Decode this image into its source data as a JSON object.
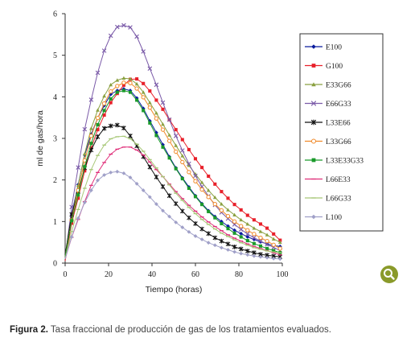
{
  "chart_data": {
    "type": "line",
    "xlabel": "Tiempo (horas)",
    "ylabel": "ml de gas/hora",
    "xlim": [
      0,
      100
    ],
    "ylim": [
      0,
      6
    ],
    "xticks": [
      0,
      20,
      40,
      60,
      80,
      100
    ],
    "yticks": [
      0,
      1,
      2,
      3,
      4,
      5,
      6
    ],
    "grid": false,
    "legend_position": "right",
    "x": [
      0,
      3,
      6,
      9,
      12,
      15,
      18,
      21,
      24,
      27,
      30,
      33,
      36,
      39,
      42,
      45,
      48,
      51,
      54,
      57,
      60,
      63,
      66,
      69,
      72,
      75,
      78,
      81,
      84,
      87,
      90,
      93,
      96,
      99
    ],
    "series": [
      {
        "name": "E100",
        "color": "#0a1c9e",
        "marker": "diamond",
        "peak": 4.2,
        "peak_x": 28,
        "tail": 0.4,
        "start": 0.1,
        "values": [
          0.1,
          1.17,
          1.89,
          2.6,
          3.1,
          3.49,
          3.79,
          4.06,
          4.15,
          4.19,
          4.15,
          3.97,
          3.72,
          3.42,
          3.14,
          2.85,
          2.56,
          2.29,
          2.05,
          1.83,
          1.62,
          1.43,
          1.26,
          1.12,
          1.0,
          0.89,
          0.79,
          0.71,
          0.63,
          0.57,
          0.51,
          0.46,
          0.42,
          0.4
        ]
      },
      {
        "name": "G100",
        "color": "#e8202a",
        "marker": "square",
        "peak": 4.45,
        "peak_x": 31,
        "tail": 0.55,
        "start": 0.05,
        "values": [
          0.05,
          0.96,
          1.56,
          2.22,
          2.77,
          3.21,
          3.56,
          3.86,
          4.08,
          4.28,
          4.42,
          4.43,
          4.32,
          4.14,
          3.92,
          3.7,
          3.45,
          3.21,
          2.97,
          2.73,
          2.51,
          2.3,
          2.09,
          1.9,
          1.72,
          1.56,
          1.41,
          1.28,
          1.15,
          1.04,
          0.94,
          0.84,
          0.7,
          0.55
        ]
      },
      {
        "name": "E33G66",
        "color": "#8aa040",
        "marker": "triangle",
        "peak": 4.45,
        "peak_x": 29,
        "tail": 0.5,
        "start": 0.1,
        "values": [
          0.1,
          1.1,
          1.87,
          2.63,
          3.24,
          3.68,
          4.02,
          4.29,
          4.4,
          4.45,
          4.43,
          4.31,
          4.11,
          3.86,
          3.61,
          3.34,
          3.08,
          2.83,
          2.58,
          2.35,
          2.14,
          1.94,
          1.75,
          1.58,
          1.42,
          1.28,
          1.16,
          1.04,
          0.94,
          0.84,
          0.76,
          0.68,
          0.58,
          0.5
        ]
      },
      {
        "name": "E66G33",
        "color": "#7a5aa8",
        "marker": "x",
        "peak": 5.72,
        "peak_x": 28,
        "tail": 0.3,
        "start": 0.1,
        "values": [
          0.1,
          1.35,
          2.3,
          3.22,
          3.93,
          4.58,
          5.11,
          5.47,
          5.68,
          5.72,
          5.67,
          5.45,
          5.09,
          4.68,
          4.29,
          3.86,
          3.45,
          3.06,
          2.71,
          2.39,
          2.1,
          1.84,
          1.61,
          1.4,
          1.22,
          1.07,
          0.93,
          0.81,
          0.7,
          0.61,
          0.53,
          0.45,
          0.38,
          0.3
        ]
      },
      {
        "name": "L33E66",
        "color": "#111111",
        "marker": "star",
        "peak": 3.32,
        "peak_x": 25,
        "tail": 0.15,
        "start": 0.2,
        "values": [
          0.2,
          1.17,
          1.72,
          2.29,
          2.72,
          3.04,
          3.24,
          3.3,
          3.32,
          3.25,
          3.06,
          2.82,
          2.56,
          2.31,
          2.07,
          1.84,
          1.62,
          1.43,
          1.25,
          1.09,
          0.95,
          0.82,
          0.71,
          0.61,
          0.53,
          0.46,
          0.39,
          0.34,
          0.29,
          0.25,
          0.21,
          0.19,
          0.17,
          0.15
        ]
      },
      {
        "name": "L33G66",
        "color": "#f08a2a",
        "marker": "circle",
        "peak": 4.35,
        "peak_x": 29,
        "tail": 0.35,
        "start": 0.15,
        "values": [
          0.15,
          1.03,
          1.75,
          2.47,
          3.06,
          3.49,
          3.84,
          4.13,
          4.26,
          4.34,
          4.33,
          4.2,
          3.99,
          3.74,
          3.48,
          3.21,
          2.94,
          2.68,
          2.43,
          2.19,
          1.97,
          1.77,
          1.59,
          1.42,
          1.27,
          1.13,
          1.0,
          0.89,
          0.79,
          0.7,
          0.61,
          0.53,
          0.44,
          0.35
        ]
      },
      {
        "name": "L33E33G33",
        "color": "#1a9a2a",
        "marker": "square",
        "peak": 4.15,
        "peak_x": 27,
        "tail": 0.25,
        "start": 0.15,
        "values": [
          0.15,
          1.02,
          1.64,
          2.32,
          2.88,
          3.33,
          3.67,
          3.95,
          4.11,
          4.15,
          4.11,
          3.92,
          3.67,
          3.37,
          3.07,
          2.79,
          2.53,
          2.27,
          2.03,
          1.8,
          1.6,
          1.41,
          1.24,
          1.09,
          0.95,
          0.83,
          0.72,
          0.63,
          0.54,
          0.47,
          0.41,
          0.35,
          0.3,
          0.25
        ]
      },
      {
        "name": "L66E33",
        "color": "#e0307a",
        "marker": "dash",
        "peak": 2.8,
        "peak_x": 28,
        "tail": 0.2,
        "start": 0.1,
        "values": [
          0.1,
          0.62,
          1.05,
          1.48,
          1.87,
          2.18,
          2.42,
          2.62,
          2.74,
          2.79,
          2.79,
          2.72,
          2.6,
          2.43,
          2.25,
          2.08,
          1.9,
          1.72,
          1.55,
          1.39,
          1.25,
          1.11,
          0.99,
          0.88,
          0.78,
          0.68,
          0.6,
          0.53,
          0.46,
          0.4,
          0.35,
          0.3,
          0.25,
          0.2
        ]
      },
      {
        "name": "L66G33",
        "color": "#a8c878",
        "marker": "dash",
        "peak": 3.05,
        "peak_x": 27,
        "tail": 0.25,
        "start": 0.1,
        "values": [
          0.1,
          0.76,
          1.29,
          1.8,
          2.25,
          2.59,
          2.84,
          2.99,
          3.04,
          3.05,
          2.99,
          2.86,
          2.69,
          2.49,
          2.29,
          2.08,
          1.88,
          1.68,
          1.51,
          1.34,
          1.19,
          1.05,
          0.93,
          0.82,
          0.72,
          0.64,
          0.56,
          0.49,
          0.43,
          0.37,
          0.33,
          0.29,
          0.27,
          0.25
        ]
      },
      {
        "name": "L100",
        "color": "#a0a0c8",
        "marker": "diamond",
        "peak": 2.2,
        "peak_x": 25,
        "tail": 0.1,
        "start": 0.1,
        "values": [
          0.1,
          0.63,
          1.08,
          1.46,
          1.75,
          1.99,
          2.12,
          2.18,
          2.2,
          2.16,
          2.06,
          1.91,
          1.75,
          1.59,
          1.42,
          1.26,
          1.12,
          0.98,
          0.86,
          0.75,
          0.65,
          0.57,
          0.49,
          0.43,
          0.37,
          0.32,
          0.27,
          0.23,
          0.2,
          0.17,
          0.15,
          0.13,
          0.11,
          0.1
        ]
      }
    ]
  },
  "caption": {
    "label": "Figura 2.",
    "text": " Tasa fraccional de producción de gas de los tratamientos evaluados."
  },
  "zoom_icon": "magnifier-icon",
  "zoom_color": "#8a9a2a"
}
